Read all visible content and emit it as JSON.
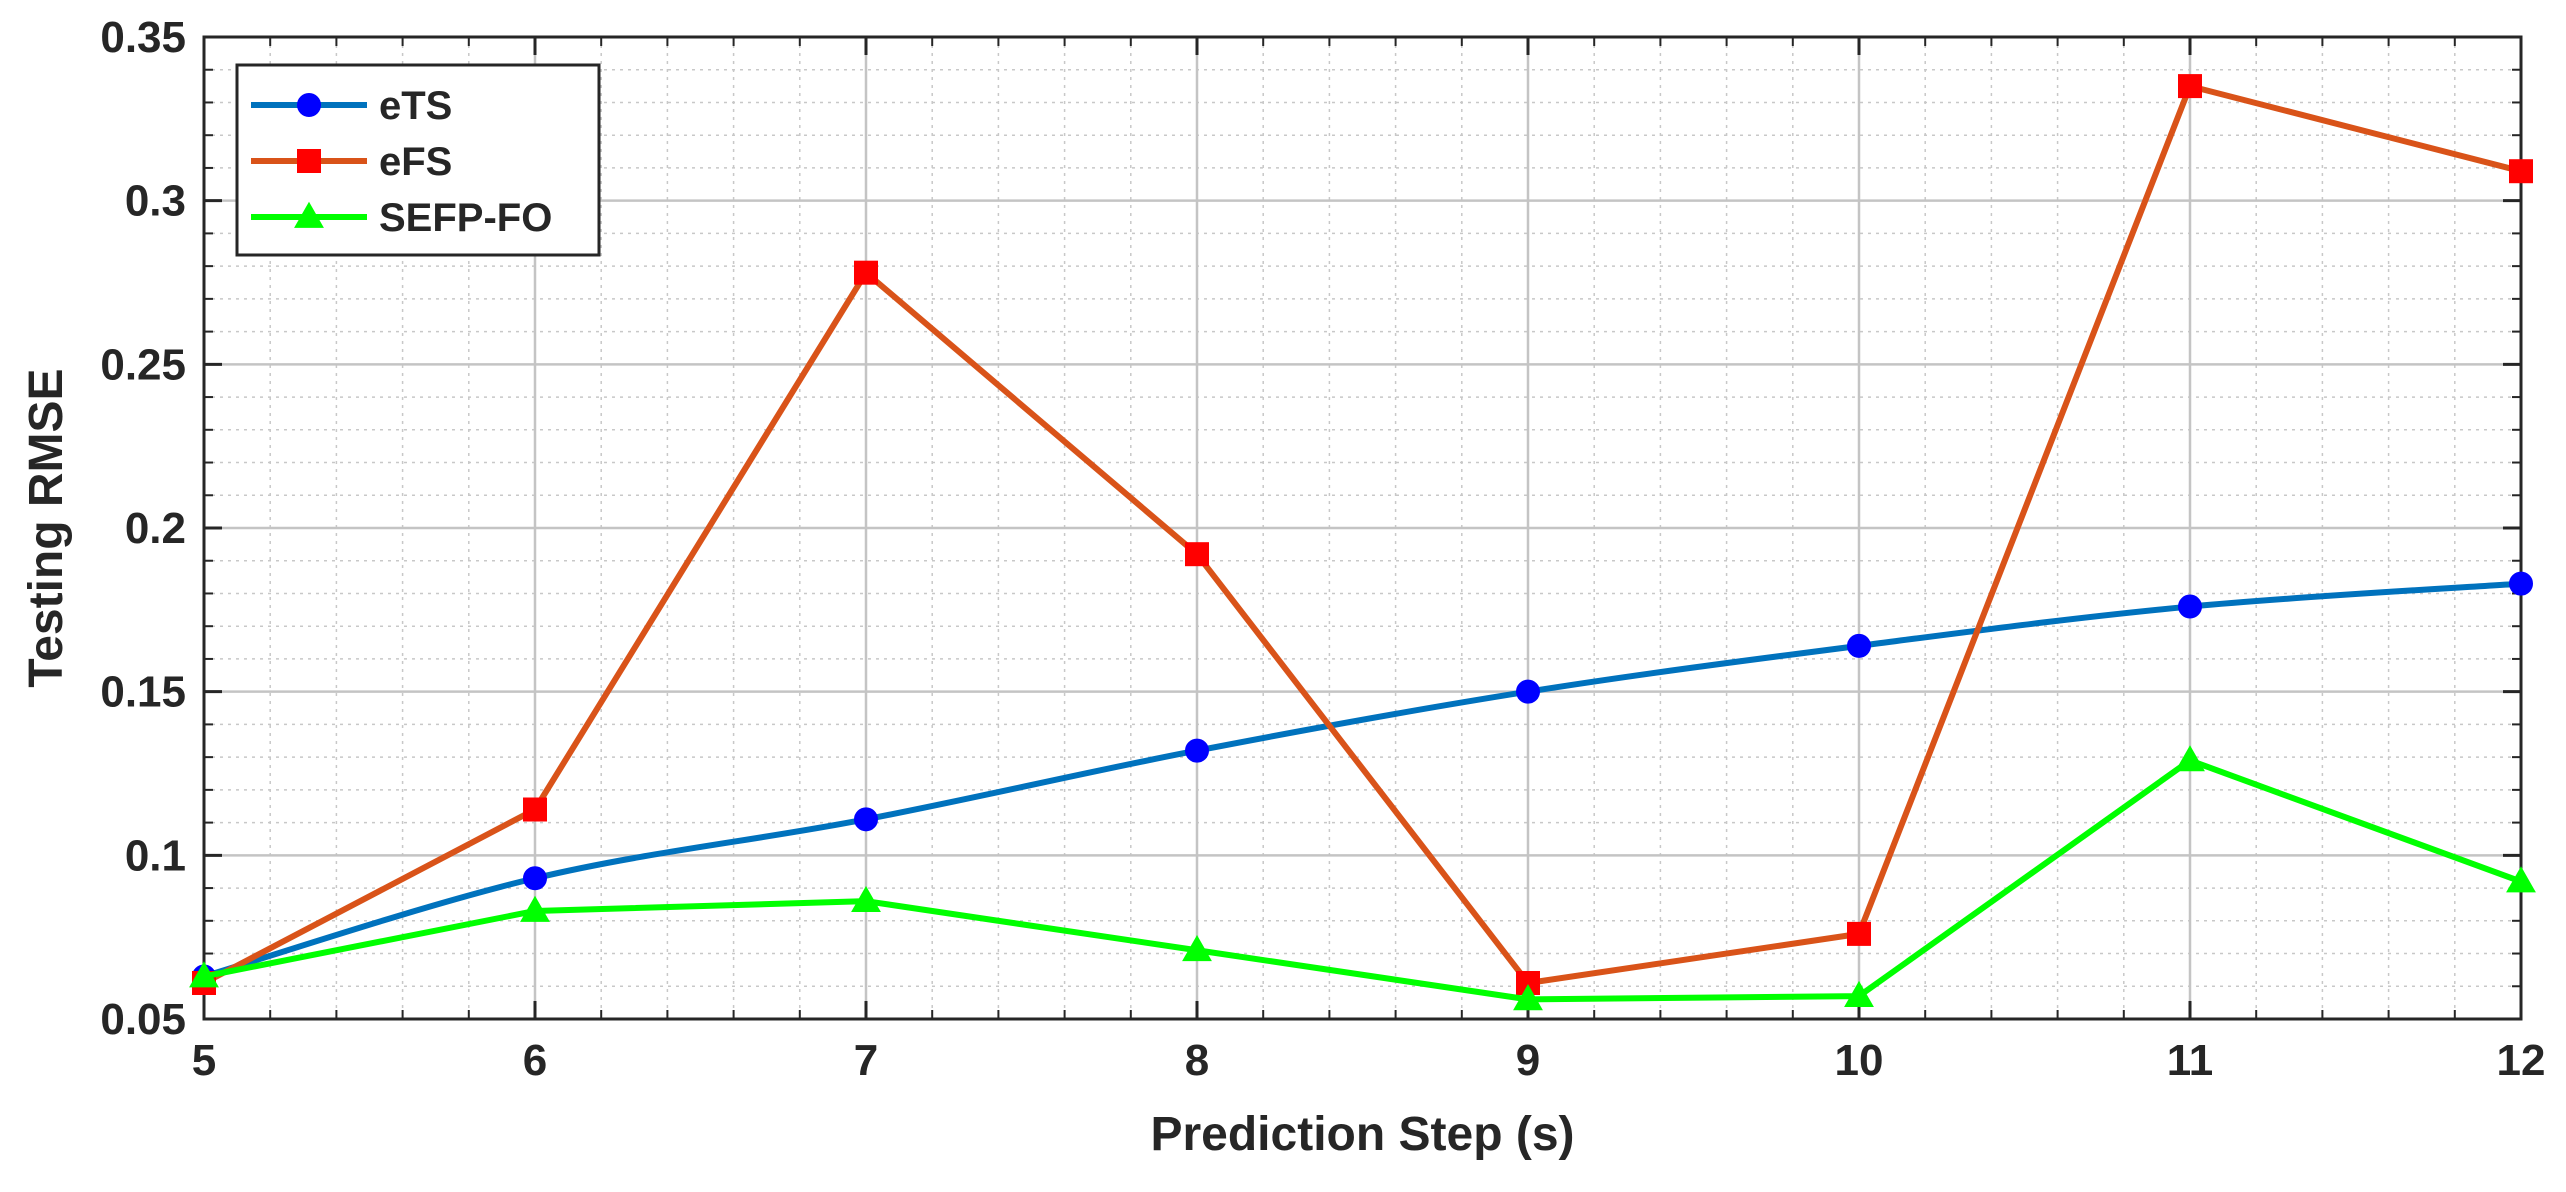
{
  "chart_data": {
    "type": "line",
    "title": "",
    "xlabel": "Prediction Step (s)",
    "ylabel": "Testing RMSE",
    "x": [
      5,
      6,
      7,
      8,
      9,
      10,
      11,
      12
    ],
    "xlim": [
      5,
      12
    ],
    "ylim": [
      0.05,
      0.35
    ],
    "xticks": [
      5,
      6,
      7,
      8,
      9,
      10,
      11,
      12
    ],
    "xtick_labels": [
      "5",
      "6",
      "7",
      "8",
      "9",
      "10",
      "11",
      "12"
    ],
    "yticks": [
      0.05,
      0.1,
      0.15,
      0.2,
      0.25,
      0.3,
      0.35
    ],
    "ytick_labels": [
      "0.05",
      "0.1",
      "0.15",
      "0.2",
      "0.25",
      "0.3",
      "0.35"
    ],
    "grid": true,
    "minor_grid": true,
    "legend_position": "top-left",
    "series": [
      {
        "name": "eTS",
        "values": [
          0.063,
          0.093,
          0.111,
          0.132,
          0.15,
          0.164,
          0.176,
          0.183
        ],
        "line_color": "#0072BD",
        "marker": "circle",
        "marker_color": "#0000FF",
        "smooth": true
      },
      {
        "name": "eFS",
        "values": [
          0.061,
          0.114,
          0.278,
          0.192,
          0.061,
          0.076,
          0.335,
          0.309
        ],
        "line_color": "#D95319",
        "marker": "square",
        "marker_color": "#FF0000",
        "smooth": false
      },
      {
        "name": "SEFP-FO",
        "values": [
          0.063,
          0.083,
          0.086,
          0.071,
          0.056,
          0.057,
          0.129,
          0.092
        ],
        "line_color": "#00FF00",
        "marker": "triangle",
        "marker_color": "#00FF00",
        "smooth": false
      }
    ]
  }
}
